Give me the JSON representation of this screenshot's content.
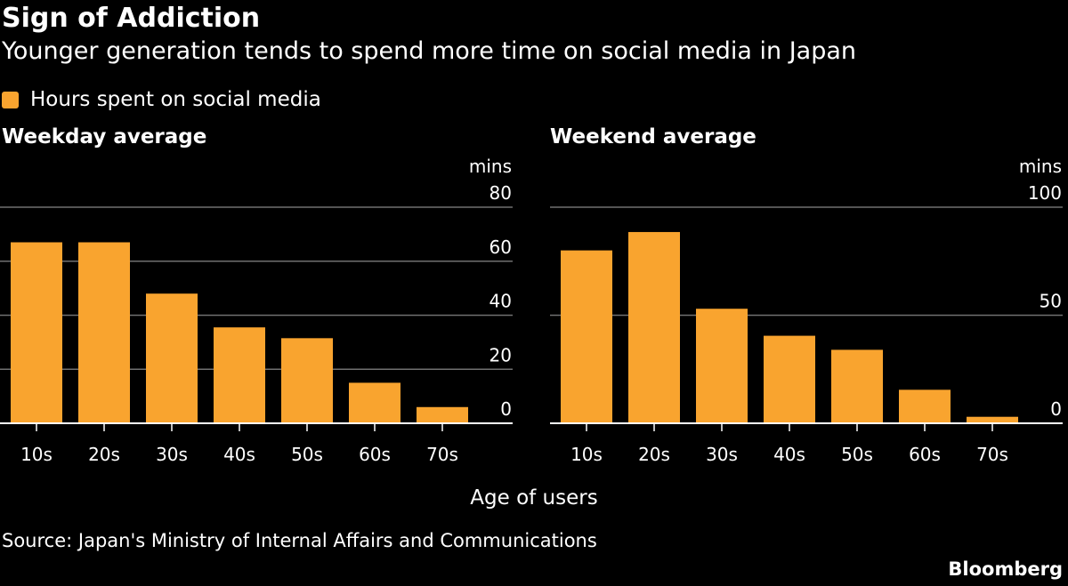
{
  "header": {
    "title": "Sign of Addiction",
    "subtitle": "Younger generation tends to spend more time on social media in Japan"
  },
  "legend": {
    "label": "Hours spent on social media"
  },
  "colors": {
    "bar": "#f9a42f",
    "background": "#000000",
    "grid": "#707070",
    "text": "#ffffff"
  },
  "chart_data": [
    {
      "type": "bar",
      "title": "Weekday average",
      "categories": [
        "10s",
        "20s",
        "30s",
        "40s",
        "50s",
        "60s",
        "70s"
      ],
      "series": [
        {
          "name": "Hours spent on social media",
          "values": [
            67,
            67,
            48,
            35.5,
            31.5,
            15,
            6
          ]
        }
      ],
      "xlabel": "Age of users",
      "ylabel": "mins",
      "ylim": [
        0,
        80
      ],
      "yticks": [
        "0",
        "20",
        "40",
        "60",
        "80"
      ],
      "ytick_values": [
        0,
        20,
        40,
        60,
        80
      ],
      "grid": true
    },
    {
      "type": "bar",
      "title": "Weekend average",
      "categories": [
        "10s",
        "20s",
        "30s",
        "40s",
        "50s",
        "60s",
        "70s"
      ],
      "series": [
        {
          "name": "Hours spent on social media",
          "values": [
            80,
            88.5,
            53,
            40.5,
            34,
            15.5,
            3
          ]
        }
      ],
      "xlabel": "Age of users",
      "ylabel": "mins",
      "ylim": [
        0,
        100
      ],
      "yticks": [
        "0",
        "50",
        "100"
      ],
      "ytick_values": [
        0,
        50,
        100
      ],
      "grid": true
    }
  ],
  "footer": {
    "xlabel": "Age of users",
    "source": "Source: Japan's Ministry of Internal Affairs and Communications",
    "brand": "Bloomberg"
  }
}
